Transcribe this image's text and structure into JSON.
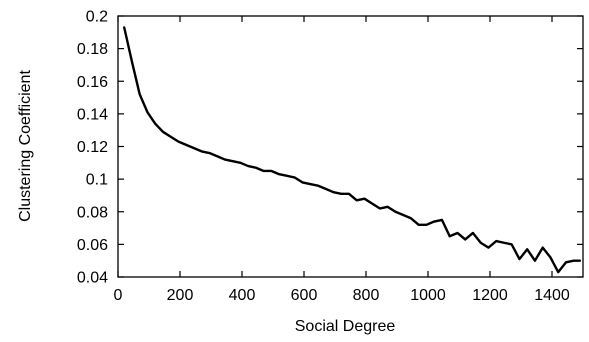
{
  "chart_data": {
    "type": "line",
    "title": "",
    "xlabel": "Social Degree",
    "ylabel": "Clustering Coefficient",
    "xlim": [
      0,
      1500
    ],
    "ylim": [
      0.04,
      0.2
    ],
    "xticks": [
      0,
      200,
      400,
      600,
      800,
      1000,
      1200,
      1400
    ],
    "yticks": [
      0.04,
      0.06,
      0.08,
      0.1,
      0.12,
      0.14,
      0.16,
      0.18,
      0.2
    ],
    "xtick_labels": [
      "0",
      "200",
      "400",
      "600",
      "800",
      "1000",
      "1200",
      "1400"
    ],
    "ytick_labels": [
      "0.04",
      "0.06",
      "0.08",
      "0.1",
      "0.12",
      "0.14",
      "0.16",
      "0.18",
      "0.2"
    ],
    "grid": false,
    "legend": "none",
    "line_color": "#000000",
    "series": [
      {
        "x": [
          20,
          45,
          70,
          95,
          120,
          145,
          170,
          195,
          220,
          245,
          270,
          295,
          320,
          345,
          370,
          395,
          420,
          445,
          470,
          495,
          520,
          545,
          570,
          595,
          620,
          645,
          670,
          695,
          720,
          745,
          770,
          795,
          820,
          845,
          870,
          895,
          920,
          945,
          970,
          995,
          1020,
          1045,
          1070,
          1095,
          1120,
          1145,
          1170,
          1195,
          1220,
          1245,
          1270,
          1295,
          1320,
          1345,
          1370,
          1395,
          1420,
          1445,
          1470,
          1490
        ],
        "values": [
          0.193,
          0.172,
          0.152,
          0.141,
          0.134,
          0.129,
          0.126,
          0.123,
          0.121,
          0.119,
          0.117,
          0.116,
          0.114,
          0.112,
          0.111,
          0.11,
          0.108,
          0.107,
          0.105,
          0.105,
          0.103,
          0.102,
          0.101,
          0.098,
          0.097,
          0.096,
          0.094,
          0.092,
          0.091,
          0.091,
          0.087,
          0.088,
          0.085,
          0.082,
          0.083,
          0.08,
          0.078,
          0.076,
          0.072,
          0.072,
          0.074,
          0.075,
          0.065,
          0.067,
          0.063,
          0.067,
          0.061,
          0.058,
          0.062,
          0.061,
          0.06,
          0.051,
          0.057,
          0.05,
          0.058,
          0.052,
          0.043,
          0.049,
          0.05,
          0.05
        ]
      }
    ]
  }
}
